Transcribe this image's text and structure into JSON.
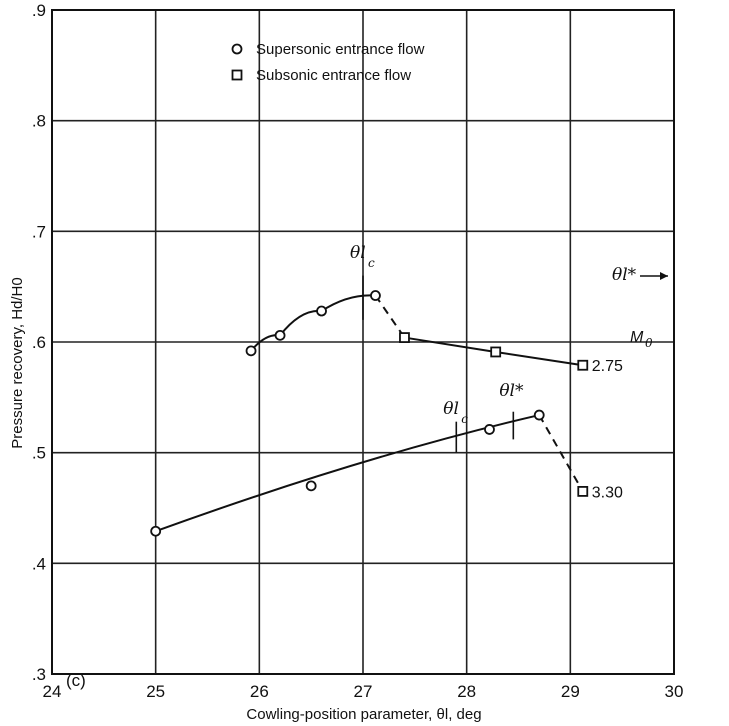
{
  "chart_data": {
    "type": "scatter",
    "panel_label": "(c)",
    "xlabel": "Cowling-position parameter, θl, deg",
    "ylabel": "Pressure recovery, Hd/H0",
    "xlim": [
      24,
      30
    ],
    "ylim": [
      0.3,
      0.9
    ],
    "x_ticks": [
      "24",
      "25",
      "26",
      "27",
      "28",
      "29",
      "30"
    ],
    "y_ticks": [
      ".3",
      ".4",
      ".5",
      ".6",
      ".7",
      ".8",
      ".9"
    ],
    "grid": true,
    "legend": {
      "position": "top-left",
      "entries": [
        {
          "marker": "circle",
          "label": "Supersonic entrance flow"
        },
        {
          "marker": "square",
          "label": "Subsonic entrance flow"
        }
      ]
    },
    "mach_header": "M0",
    "series": [
      {
        "name": "2.75",
        "supersonic": {
          "x": [
            25.92,
            26.2,
            26.6,
            27.12
          ],
          "y": [
            0.592,
            0.606,
            0.628,
            0.642
          ]
        },
        "subsonic": {
          "x": [
            27.4,
            28.28,
            29.12
          ],
          "y": [
            0.604,
            0.591,
            0.579
          ]
        }
      },
      {
        "name": "3.30",
        "supersonic": {
          "x": [
            25.0,
            26.5,
            28.22,
            28.7
          ],
          "y": [
            0.429,
            0.47,
            0.521,
            0.534
          ]
        },
        "subsonic": {
          "x": [
            29.12
          ],
          "y": [
            0.465
          ]
        }
      }
    ],
    "annotations": {
      "critical_275": {
        "label": "θl",
        "sub": "c",
        "x": 27.0
      },
      "critical_330": {
        "label": "θl",
        "sub": "c",
        "x": 27.9
      },
      "star_330": {
        "label": "θl*",
        "x": 28.45
      },
      "arrow": {
        "label": "θl*"
      }
    }
  }
}
